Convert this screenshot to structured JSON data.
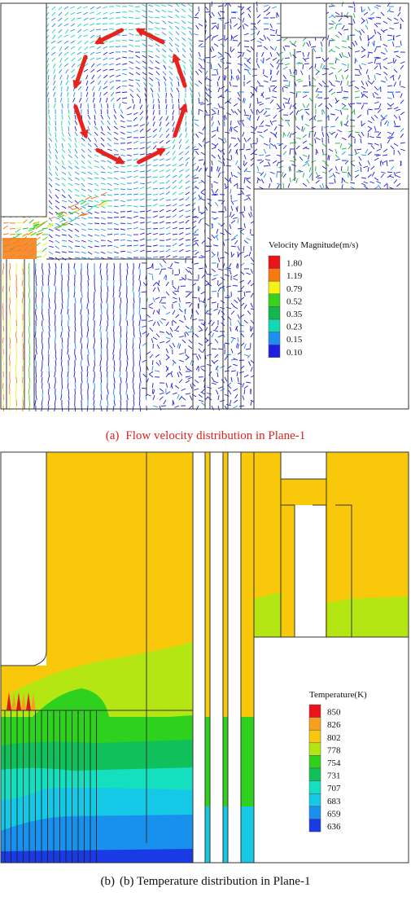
{
  "panel_a": {
    "caption_label": "(a)",
    "caption_text": "Flow velocity distribution in Plane-1",
    "legend": {
      "title": "Velocity Magnitude(m/s)",
      "entries": [
        {
          "value": "1.80",
          "color": "#e8141a"
        },
        {
          "value": "1.19",
          "color": "#f77a10"
        },
        {
          "value": "0.79",
          "color": "#f6f214"
        },
        {
          "value": "0.52",
          "color": "#38d21c"
        },
        {
          "value": "0.35",
          "color": "#12b84a"
        },
        {
          "value": "0.23",
          "color": "#12d8b4"
        },
        {
          "value": "0.15",
          "color": "#1e8ff0"
        },
        {
          "value": "0.10",
          "color": "#1e1ee0"
        }
      ]
    },
    "circulation_arrow_color": "#e8231e"
  },
  "panel_b": {
    "caption_label": "(b)",
    "caption_text": "(b) Temperature distribution in Plane-1",
    "legend": {
      "title": "Temperature(K)",
      "entries": [
        {
          "value": "850",
          "color": "#e8141a"
        },
        {
          "value": "826",
          "color": "#f7a020"
        },
        {
          "value": "802",
          "color": "#f9c80a"
        },
        {
          "value": "778",
          "color": "#b4e614"
        },
        {
          "value": "754",
          "color": "#2ed21e"
        },
        {
          "value": "731",
          "color": "#10c05a"
        },
        {
          "value": "707",
          "color": "#14e0c0"
        },
        {
          "value": "683",
          "color": "#14c8e6"
        },
        {
          "value": "659",
          "color": "#1890ee"
        },
        {
          "value": "636",
          "color": "#1a3ae6"
        }
      ]
    }
  }
}
